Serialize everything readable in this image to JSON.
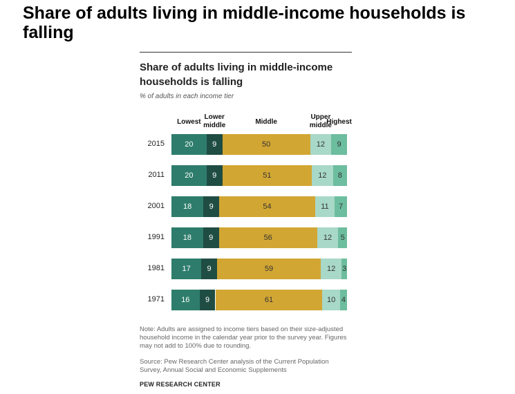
{
  "page_title": "Share of adults living in middle-income households is falling",
  "chart_data": {
    "type": "bar",
    "stacked": true,
    "orientation": "horizontal",
    "title": "Share of adults living in middle-income households  is falling",
    "subtitle": "% of adults in each income tier",
    "categories": [
      "2015",
      "2011",
      "2001",
      "1991",
      "1981",
      "1971"
    ],
    "series": [
      {
        "name": "Lowest",
        "label_lines": [
          "Lowest"
        ],
        "color": "#2e7d6c",
        "text_color": "#ffffff",
        "values": [
          20,
          20,
          18,
          18,
          17,
          16
        ]
      },
      {
        "name": "Lower middle",
        "label_lines": [
          "Lower",
          "middle"
        ],
        "color": "#1f4d43",
        "text_color": "#ffffff",
        "values": [
          9,
          9,
          9,
          9,
          9,
          9
        ]
      },
      {
        "name": "Middle",
        "label_lines": [
          "Middle"
        ],
        "color": "#d2a633",
        "text_color": "#333333",
        "values": [
          50,
          51,
          54,
          56,
          59,
          61
        ]
      },
      {
        "name": "Upper middle",
        "label_lines": [
          "Upper",
          "middle"
        ],
        "color": "#a8d8c8",
        "text_color": "#333333",
        "values": [
          12,
          12,
          11,
          12,
          12,
          10
        ]
      },
      {
        "name": "Highest",
        "label_lines": [
          "Highest"
        ],
        "color": "#6dbd9f",
        "text_color": "#333333",
        "values": [
          9,
          8,
          7,
          5,
          3,
          4
        ]
      }
    ],
    "xlim": [
      0,
      100
    ],
    "grid": false,
    "legend": "top"
  },
  "note": "Note: Adults are assigned to income tiers based on their size-adjusted household income in the calendar year prior to the survey year. Figures may not add to 100% due to rounding.",
  "source": "Source: Pew Research Center analysis of the Current Population Survey, Annual Social and Economic Supplements",
  "brand": "PEW RESEARCH CENTER"
}
